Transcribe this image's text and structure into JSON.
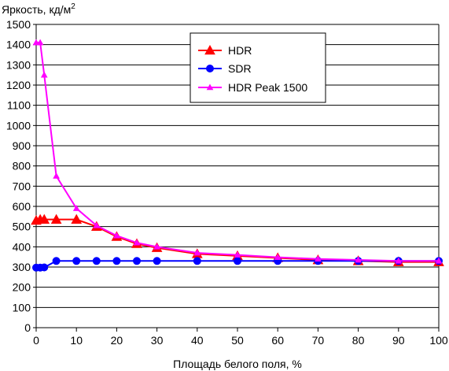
{
  "chart_data": {
    "type": "line",
    "ylabel": "Яркость, кд/м",
    "ylabel_superscript": "2",
    "xlabel": "Площадь белого поля, %",
    "xlim": [
      0,
      100
    ],
    "ylim": [
      0,
      1500
    ],
    "x_ticks": [
      0,
      10,
      20,
      30,
      40,
      50,
      60,
      70,
      80,
      90,
      100
    ],
    "y_ticks": [
      0,
      100,
      200,
      300,
      400,
      500,
      600,
      700,
      800,
      900,
      1000,
      1100,
      1200,
      1300,
      1400,
      1500
    ],
    "grid": "horizontal",
    "legend_position": "top-right",
    "series": [
      {
        "name": "HDR",
        "color": "#ff0000",
        "marker": "triangle",
        "x": [
          0,
          1,
          2,
          5,
          10,
          15,
          20,
          25,
          30,
          40,
          50,
          60,
          70,
          80,
          90,
          100
        ],
        "values": [
          530,
          535,
          535,
          535,
          535,
          500,
          450,
          415,
          395,
          365,
          355,
          345,
          335,
          330,
          325,
          325
        ]
      },
      {
        "name": "SDR",
        "color": "#0000ff",
        "marker": "circle",
        "x": [
          0,
          1,
          2,
          5,
          10,
          15,
          20,
          25,
          30,
          40,
          50,
          60,
          70,
          80,
          90,
          100
        ],
        "values": [
          297,
          297,
          298,
          330,
          330,
          330,
          330,
          330,
          330,
          330,
          330,
          330,
          330,
          330,
          330,
          330
        ]
      },
      {
        "name": "HDR Peak 1500",
        "color": "#ff00ff",
        "marker": "small-triangle",
        "x": [
          0,
          1,
          2,
          5,
          10,
          15,
          20,
          25,
          30,
          40,
          50,
          60,
          70,
          80,
          90,
          100
        ],
        "values": [
          1410,
          1410,
          1250,
          750,
          590,
          505,
          455,
          420,
          400,
          370,
          360,
          348,
          340,
          335,
          330,
          330
        ]
      }
    ]
  }
}
